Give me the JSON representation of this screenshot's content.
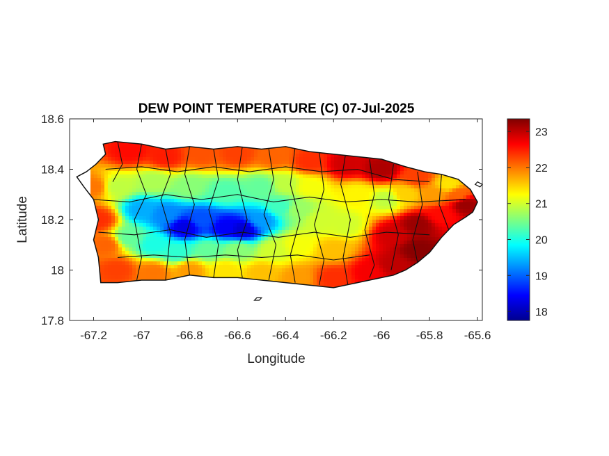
{
  "chart_data": {
    "type": "heatmap",
    "title": "DEW POINT TEMPERATURE (C) 07-Jul-2025",
    "xlabel": "Longitude",
    "ylabel": "Latitude",
    "xlim": [
      -67.3,
      -65.58
    ],
    "ylim": [
      17.8,
      18.6
    ],
    "xticks": [
      -67.2,
      -67,
      -66.8,
      -66.6,
      -66.4,
      -66.2,
      -66,
      -65.8,
      -65.6
    ],
    "xtick_labels": [
      "-67.2",
      "-67",
      "-66.8",
      "-66.6",
      "-66.4",
      "-66.2",
      "-66",
      "-65.8",
      "-65.6"
    ],
    "yticks": [
      17.8,
      18,
      18.2,
      18.4,
      18.6
    ],
    "ytick_labels": [
      "17.8",
      "18",
      "18.2",
      "18.4",
      "18.6"
    ],
    "colorbar": {
      "colormap": "jet",
      "range": [
        17.75,
        23.35
      ],
      "ticks": [
        18,
        19,
        20,
        21,
        22,
        23
      ],
      "tick_labels": [
        "18",
        "19",
        "20",
        "21",
        "22",
        "23"
      ]
    },
    "island_outline_lonlat": [
      [
        -67.27,
        18.37
      ],
      [
        -67.23,
        18.39
      ],
      [
        -67.19,
        18.42
      ],
      [
        -67.15,
        18.46
      ],
      [
        -67.16,
        18.5
      ],
      [
        -67.11,
        18.51
      ],
      [
        -67.0,
        18.5
      ],
      [
        -66.9,
        18.48
      ],
      [
        -66.8,
        18.49
      ],
      [
        -66.7,
        18.48
      ],
      [
        -66.6,
        18.49
      ],
      [
        -66.5,
        18.48
      ],
      [
        -66.4,
        18.49
      ],
      [
        -66.3,
        18.47
      ],
      [
        -66.2,
        18.46
      ],
      [
        -66.1,
        18.45
      ],
      [
        -66.0,
        18.44
      ],
      [
        -65.9,
        18.41
      ],
      [
        -65.82,
        18.39
      ],
      [
        -65.75,
        18.38
      ],
      [
        -65.68,
        18.36
      ],
      [
        -65.63,
        18.32
      ],
      [
        -65.6,
        18.27
      ],
      [
        -65.62,
        18.23
      ],
      [
        -65.65,
        18.21
      ],
      [
        -65.7,
        18.18
      ],
      [
        -65.75,
        18.13
      ],
      [
        -65.8,
        18.07
      ],
      [
        -65.85,
        18.03
      ],
      [
        -65.9,
        18.0
      ],
      [
        -65.95,
        17.98
      ],
      [
        -66.0,
        17.97
      ],
      [
        -66.1,
        17.95
      ],
      [
        -66.2,
        17.93
      ],
      [
        -66.3,
        17.94
      ],
      [
        -66.4,
        17.95
      ],
      [
        -66.5,
        17.96
      ],
      [
        -66.6,
        17.97
      ],
      [
        -66.7,
        17.97
      ],
      [
        -66.8,
        17.98
      ],
      [
        -66.9,
        17.96
      ],
      [
        -67.0,
        17.96
      ],
      [
        -67.1,
        17.95
      ],
      [
        -67.17,
        17.95
      ],
      [
        -67.18,
        18.05
      ],
      [
        -67.2,
        18.12
      ],
      [
        -67.18,
        18.2
      ],
      [
        -67.2,
        18.28
      ],
      [
        -67.24,
        18.33
      ]
    ],
    "small_islets_lonlat": [
      [
        [
          -66.53,
          17.88
        ],
        [
          -66.52,
          17.89
        ],
        [
          -66.5,
          17.89
        ],
        [
          -66.51,
          17.88
        ]
      ],
      [
        [
          -65.58,
          18.34
        ],
        [
          -65.6,
          18.35
        ],
        [
          -65.61,
          18.34
        ],
        [
          -65.59,
          18.33
        ]
      ]
    ],
    "municipal_boundaries_lonlat": [
      [
        [
          -67.1,
          18.51
        ],
        [
          -67.08,
          18.42
        ],
        [
          -67.12,
          18.35
        ]
      ],
      [
        [
          -67.0,
          18.5
        ],
        [
          -67.02,
          18.4
        ],
        [
          -66.98,
          18.3
        ],
        [
          -67.03,
          18.2
        ],
        [
          -67.0,
          18.05
        ],
        [
          -67.02,
          17.96
        ]
      ],
      [
        [
          -66.9,
          18.48
        ],
        [
          -66.88,
          18.38
        ],
        [
          -66.92,
          18.28
        ],
        [
          -66.88,
          18.15
        ],
        [
          -66.9,
          17.96
        ]
      ],
      [
        [
          -66.8,
          18.49
        ],
        [
          -66.82,
          18.38
        ],
        [
          -66.78,
          18.26
        ],
        [
          -66.82,
          18.12
        ],
        [
          -66.8,
          17.98
        ]
      ],
      [
        [
          -66.7,
          18.48
        ],
        [
          -66.68,
          18.36
        ],
        [
          -66.72,
          18.24
        ],
        [
          -66.68,
          18.1
        ],
        [
          -66.7,
          17.97
        ]
      ],
      [
        [
          -66.58,
          18.49
        ],
        [
          -66.6,
          18.36
        ],
        [
          -66.56,
          18.2
        ],
        [
          -66.6,
          18.08
        ],
        [
          -66.58,
          17.97
        ]
      ],
      [
        [
          -66.47,
          18.48
        ],
        [
          -66.45,
          18.36
        ],
        [
          -66.49,
          18.22
        ],
        [
          -66.44,
          18.1
        ],
        [
          -66.47,
          17.96
        ]
      ],
      [
        [
          -66.36,
          18.49
        ],
        [
          -66.38,
          18.34
        ],
        [
          -66.34,
          18.2
        ],
        [
          -66.38,
          18.06
        ],
        [
          -66.36,
          17.95
        ]
      ],
      [
        [
          -66.26,
          18.47
        ],
        [
          -66.24,
          18.32
        ],
        [
          -66.28,
          18.18
        ],
        [
          -66.24,
          18.04
        ],
        [
          -66.26,
          17.94
        ]
      ],
      [
        [
          -66.15,
          18.46
        ],
        [
          -66.17,
          18.34
        ],
        [
          -66.13,
          18.2
        ],
        [
          -66.16,
          18.05
        ],
        [
          -66.14,
          17.94
        ]
      ],
      [
        [
          -66.05,
          18.44
        ],
        [
          -66.03,
          18.3
        ],
        [
          -66.07,
          18.16
        ],
        [
          -66.03,
          18.02
        ],
        [
          -66.05,
          17.97
        ]
      ],
      [
        [
          -65.95,
          18.42
        ],
        [
          -65.97,
          18.28
        ],
        [
          -65.93,
          18.14
        ],
        [
          -65.96,
          18.0
        ]
      ],
      [
        [
          -65.85,
          18.39
        ],
        [
          -65.83,
          18.26
        ],
        [
          -65.87,
          18.12
        ],
        [
          -65.85,
          18.03
        ]
      ],
      [
        [
          -65.75,
          18.38
        ],
        [
          -65.76,
          18.26
        ],
        [
          -65.72,
          18.16
        ]
      ],
      [
        [
          -67.2,
          18.28
        ],
        [
          -67.05,
          18.27
        ],
        [
          -66.9,
          18.3
        ],
        [
          -66.75,
          18.28
        ],
        [
          -66.6,
          18.3
        ],
        [
          -66.45,
          18.27
        ],
        [
          -66.3,
          18.29
        ],
        [
          -66.15,
          18.27
        ],
        [
          -66.0,
          18.28
        ],
        [
          -65.85,
          18.27
        ],
        [
          -65.65,
          18.28
        ]
      ],
      [
        [
          -67.18,
          18.15
        ],
        [
          -67.03,
          18.14
        ],
        [
          -66.88,
          18.16
        ],
        [
          -66.73,
          18.13
        ],
        [
          -66.58,
          18.15
        ],
        [
          -66.43,
          18.13
        ],
        [
          -66.28,
          18.15
        ],
        [
          -66.13,
          18.13
        ],
        [
          -65.98,
          18.15
        ],
        [
          -65.8,
          18.14
        ]
      ],
      [
        [
          -67.15,
          18.4
        ],
        [
          -67.0,
          18.41
        ],
        [
          -66.85,
          18.39
        ],
        [
          -66.7,
          18.41
        ],
        [
          -66.55,
          18.39
        ],
        [
          -66.4,
          18.41
        ],
        [
          -66.25,
          18.39
        ],
        [
          -66.1,
          18.4
        ],
        [
          -65.95,
          18.36
        ],
        [
          -65.8,
          18.35
        ]
      ],
      [
        [
          -67.1,
          18.05
        ],
        [
          -66.95,
          18.06
        ],
        [
          -66.8,
          18.05
        ],
        [
          -66.65,
          18.06
        ],
        [
          -66.5,
          18.05
        ],
        [
          -66.35,
          18.06
        ],
        [
          -66.2,
          18.04
        ],
        [
          -66.05,
          18.06
        ]
      ]
    ],
    "field_sources_lonlat_value": [
      [
        -67.0,
        18.24,
        19.4
      ],
      [
        -66.9,
        18.22,
        19.2
      ],
      [
        -66.82,
        18.17,
        18.3
      ],
      [
        -66.75,
        18.2,
        18.9
      ],
      [
        -66.65,
        18.17,
        18.4
      ],
      [
        -66.58,
        18.16,
        18.2
      ],
      [
        -66.5,
        18.2,
        19.3
      ],
      [
        -66.42,
        18.25,
        20.2
      ],
      [
        -66.35,
        18.24,
        20.7
      ],
      [
        -66.25,
        18.2,
        21.0
      ],
      [
        -66.15,
        18.18,
        21.0
      ],
      [
        -67.05,
        18.13,
        20.4
      ],
      [
        -66.95,
        18.1,
        20.0
      ],
      [
        -66.85,
        18.07,
        20.1
      ],
      [
        -66.72,
        18.08,
        20.4
      ],
      [
        -66.6,
        18.08,
        20.6
      ],
      [
        -66.45,
        18.08,
        21.0
      ],
      [
        -66.35,
        18.1,
        21.2
      ],
      [
        -66.2,
        18.08,
        21.6
      ],
      [
        -67.1,
        18.33,
        20.9
      ],
      [
        -66.95,
        18.35,
        20.8
      ],
      [
        -66.8,
        18.33,
        20.6
      ],
      [
        -66.65,
        18.31,
        20.3
      ],
      [
        -66.5,
        18.33,
        20.4
      ],
      [
        -66.4,
        18.34,
        20.9
      ],
      [
        -67.05,
        18.47,
        22.6
      ],
      [
        -66.9,
        18.45,
        22.5
      ],
      [
        -66.75,
        18.46,
        22.2
      ],
      [
        -66.6,
        18.46,
        22.3
      ],
      [
        -66.45,
        18.45,
        22.1
      ],
      [
        -66.3,
        18.43,
        22.4
      ],
      [
        -66.15,
        18.42,
        22.9
      ],
      [
        -66.0,
        18.4,
        23.1
      ],
      [
        -65.85,
        18.37,
        22.3
      ],
      [
        -65.72,
        18.34,
        21.4
      ],
      [
        -65.68,
        18.3,
        22.1
      ],
      [
        -65.65,
        18.26,
        23.2
      ],
      [
        -65.75,
        18.22,
        22.6
      ],
      [
        -65.85,
        18.18,
        23.2
      ],
      [
        -65.95,
        18.14,
        22.9
      ],
      [
        -65.85,
        18.08,
        23.3
      ],
      [
        -65.95,
        18.02,
        23.0
      ],
      [
        -66.05,
        17.99,
        22.7
      ],
      [
        -66.2,
        17.97,
        22.4
      ],
      [
        -66.35,
        17.97,
        21.8
      ],
      [
        -66.5,
        17.99,
        21.6
      ],
      [
        -66.65,
        18.0,
        21.4
      ],
      [
        -66.8,
        18.0,
        21.8
      ],
      [
        -66.95,
        17.99,
        22.0
      ],
      [
        -67.1,
        18.0,
        22.3
      ],
      [
        -67.15,
        18.1,
        22.1
      ],
      [
        -67.18,
        18.2,
        22.4
      ],
      [
        -67.2,
        18.33,
        22.0
      ],
      [
        -66.1,
        18.3,
        21.3
      ],
      [
        -65.98,
        18.28,
        20.9
      ],
      [
        -65.9,
        18.3,
        21.5
      ],
      [
        -66.3,
        18.33,
        21.2
      ],
      [
        -65.78,
        18.3,
        21.8
      ]
    ]
  }
}
